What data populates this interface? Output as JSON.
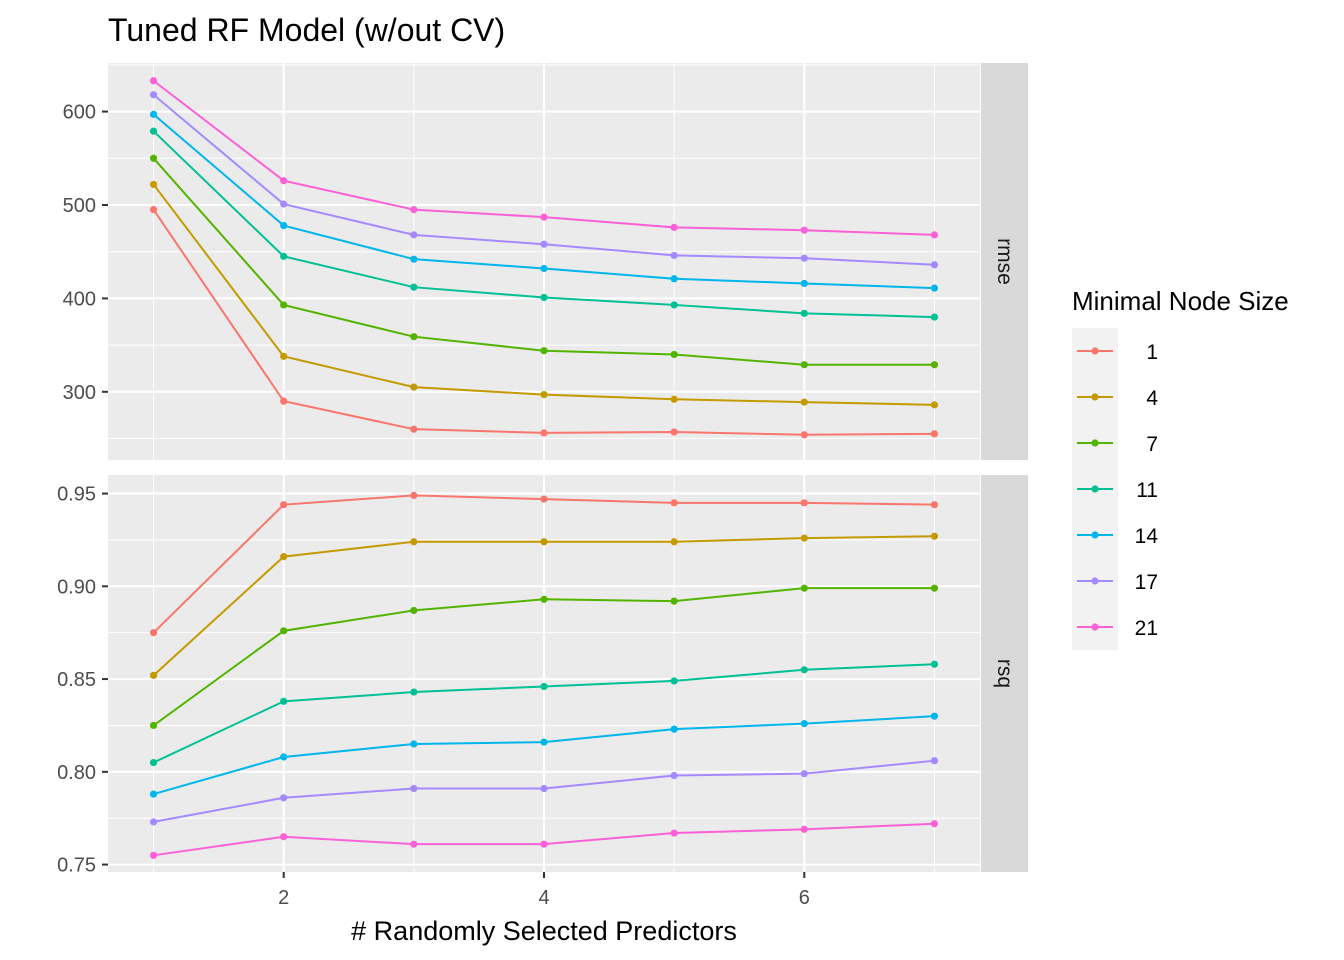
{
  "chart_data": {
    "type": "line",
    "title": "Tuned RF Model (w/out CV)",
    "xlabel": "# Randomly Selected Predictors",
    "x": [
      1,
      2,
      3,
      4,
      5,
      6,
      7
    ],
    "xticks": [
      "2",
      "4",
      "6"
    ],
    "grid": "on",
    "legend": {
      "title": "Minimal Node Size",
      "position": "right"
    },
    "colors": {
      "1": "#F8766D",
      "4": "#C49A00",
      "7": "#53B400",
      "11": "#00C094",
      "14": "#00B6EB",
      "17": "#A58AFF",
      "21": "#FB61D7"
    },
    "panels": [
      {
        "label": "rmse",
        "ylim": [
          227,
          652
        ],
        "yticks": [
          "300",
          "400",
          "500",
          "600"
        ],
        "series": [
          {
            "name": "1",
            "values": [
              495,
              290,
              260,
              256,
              257,
              254,
              255
            ]
          },
          {
            "name": "4",
            "values": [
              522,
              338,
              305,
              297,
              292,
              289,
              286
            ]
          },
          {
            "name": "7",
            "values": [
              550,
              393,
              359,
              344,
              340,
              329,
              329
            ]
          },
          {
            "name": "11",
            "values": [
              579,
              445,
              412,
              401,
              393,
              384,
              380
            ]
          },
          {
            "name": "14",
            "values": [
              597,
              478,
              442,
              432,
              421,
              416,
              411
            ]
          },
          {
            "name": "17",
            "values": [
              618,
              501,
              468,
              458,
              446,
              443,
              436
            ]
          },
          {
            "name": "21",
            "values": [
              633,
              526,
              495,
              487,
              476,
              473,
              468
            ]
          }
        ]
      },
      {
        "label": "rsq",
        "ylim": [
          0.746,
          0.96
        ],
        "yticks": [
          "0.75",
          "0.80",
          "0.85",
          "0.90",
          "0.95"
        ],
        "series": [
          {
            "name": "1",
            "values": [
              0.875,
              0.944,
              0.949,
              0.947,
              0.945,
              0.945,
              0.944
            ]
          },
          {
            "name": "4",
            "values": [
              0.852,
              0.916,
              0.924,
              0.924,
              0.924,
              0.926,
              0.927
            ]
          },
          {
            "name": "7",
            "values": [
              0.825,
              0.876,
              0.887,
              0.893,
              0.892,
              0.899,
              0.899
            ]
          },
          {
            "name": "11",
            "values": [
              0.805,
              0.838,
              0.843,
              0.846,
              0.849,
              0.855,
              0.858
            ]
          },
          {
            "name": "14",
            "values": [
              0.788,
              0.808,
              0.815,
              0.816,
              0.823,
              0.826,
              0.83
            ]
          },
          {
            "name": "17",
            "values": [
              0.773,
              0.786,
              0.791,
              0.791,
              0.798,
              0.799,
              0.806
            ]
          },
          {
            "name": "21",
            "values": [
              0.755,
              0.765,
              0.761,
              0.761,
              0.767,
              0.769,
              0.772
            ]
          }
        ]
      }
    ]
  }
}
